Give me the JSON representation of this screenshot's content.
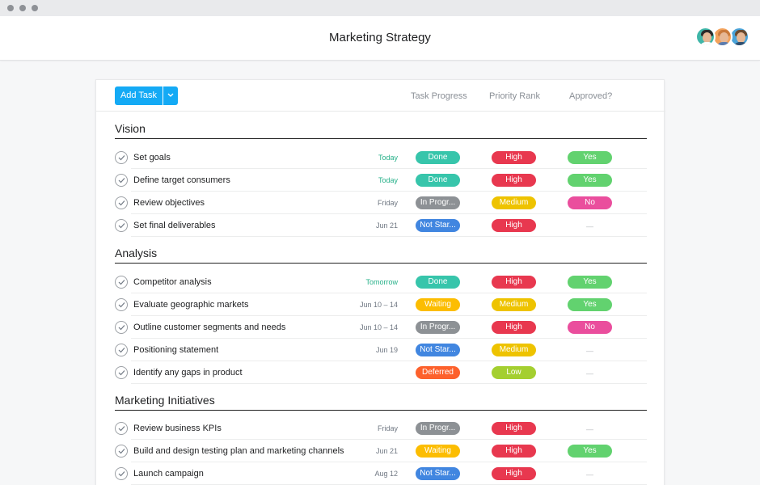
{
  "app": {
    "title": "Marketing Strategy",
    "accent": "#14aaf5"
  },
  "toolbar": {
    "add_task_label": "Add Task",
    "dropdown_icon": "chevron-down-icon"
  },
  "columns": {
    "progress": "Task Progress",
    "priority": "Priority Rank",
    "approved": "Approved?"
  },
  "status_colors": {
    "Done": "#37c5ab",
    "In Progr...": "#8d9195",
    "Not Star...": "#4186e0",
    "Waiting": "#fcbd01",
    "Deferred": "#fd612c",
    "High": "#e8384f",
    "Medium": "#eec300",
    "Low": "#a4cf30",
    "Yes": "#62d26f",
    "No": "#ea4e9d"
  },
  "sections": [
    {
      "title": "Vision",
      "tasks": [
        {
          "name": "Set goals",
          "date": "Today",
          "progress": "Done",
          "priority": "High",
          "approved": "Yes"
        },
        {
          "name": "Define target consumers",
          "date": "Today",
          "progress": "Done",
          "priority": "High",
          "approved": "Yes"
        },
        {
          "name": "Review objectives",
          "date": "Friday",
          "progress": "In Progr...",
          "priority": "Medium",
          "approved": "No"
        },
        {
          "name": "Set final deliverables",
          "date": "Jun 21",
          "progress": "Not Star...",
          "priority": "High",
          "approved": "—"
        }
      ]
    },
    {
      "title": "Analysis",
      "tasks": [
        {
          "name": "Competitor analysis",
          "date": "Tomorrow",
          "progress": "Done",
          "priority": "High",
          "approved": "Yes"
        },
        {
          "name": "Evaluate geographic markets",
          "date": "Jun 10 – 14",
          "progress": "Waiting",
          "priority": "Medium",
          "approved": "Yes"
        },
        {
          "name": "Outline customer segments and needs",
          "date": "Jun 10 – 14",
          "progress": "In Progr...",
          "priority": "High",
          "approved": "No"
        },
        {
          "name": "Positioning statement",
          "date": "Jun 19",
          "progress": "Not Star...",
          "priority": "Medium",
          "approved": "—"
        },
        {
          "name": "Identify any gaps in product",
          "date": "",
          "progress": "Deferred",
          "priority": "Low",
          "approved": "—"
        }
      ]
    },
    {
      "title": "Marketing Initiatives",
      "tasks": [
        {
          "name": "Review business KPIs",
          "date": "Friday",
          "progress": "In Progr...",
          "priority": "High",
          "approved": "—"
        },
        {
          "name": "Build and design testing plan and marketing channels",
          "date": "Jun 21",
          "progress": "Waiting",
          "priority": "High",
          "approved": "Yes"
        },
        {
          "name": "Launch campaign",
          "date": "Aug 12",
          "progress": "Not Star...",
          "priority": "High",
          "approved": "—"
        }
      ]
    }
  ]
}
